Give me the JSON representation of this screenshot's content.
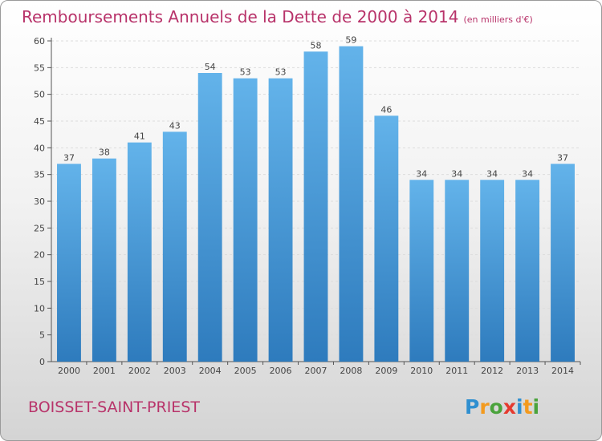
{
  "title": "Remboursements Annuels de la Dette de 2000 à 2014",
  "unit_label": "(en milliers d'€)",
  "town": "BOISSET-SAINT-PRIEST",
  "brand": {
    "letters": [
      "P",
      "r",
      "o",
      "x",
      "i",
      "t",
      "i"
    ],
    "colors": [
      "#2f8fd0",
      "#f39a1e",
      "#4aa33c",
      "#e53a2f",
      "#2f8fd0",
      "#f39a1e",
      "#4aa33c"
    ]
  },
  "colors": {
    "bar_light": "#63b3ea",
    "bar_dark": "#2e7bbd",
    "title": "#b8336a"
  },
  "chart_data": {
    "type": "bar",
    "title": "Remboursements Annuels de la Dette de 2000 à 2014",
    "xlabel": "",
    "ylabel": "",
    "categories": [
      "2000",
      "2001",
      "2002",
      "2003",
      "2004",
      "2005",
      "2006",
      "2007",
      "2008",
      "2009",
      "2010",
      "2011",
      "2012",
      "2013",
      "2014"
    ],
    "values": [
      37,
      38,
      41,
      43,
      54,
      53,
      53,
      58,
      59,
      46,
      34,
      34,
      34,
      34,
      37
    ],
    "ylim": [
      0,
      60
    ],
    "yticks": [
      0,
      5,
      10,
      15,
      20,
      25,
      30,
      35,
      40,
      45,
      50,
      55,
      60
    ],
    "grid": true
  }
}
